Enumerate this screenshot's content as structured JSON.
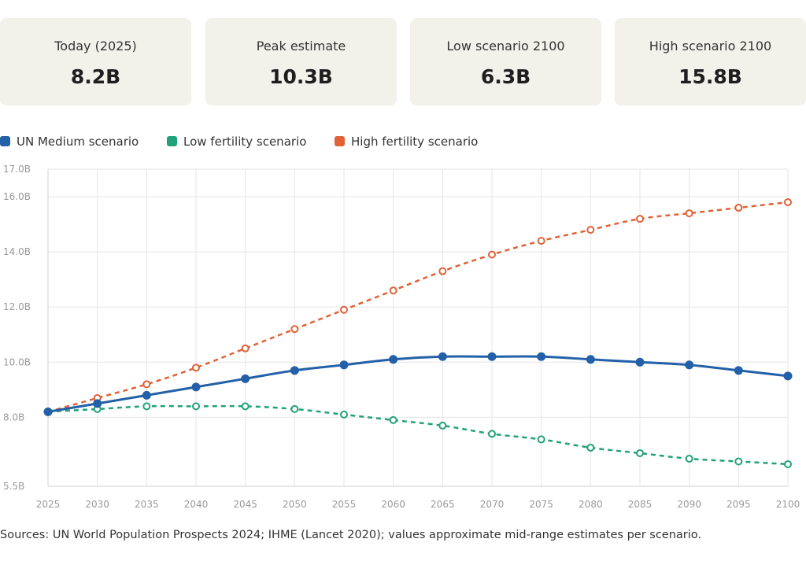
{
  "stats": [
    {
      "label": "Today (2025)",
      "value": "8.2B"
    },
    {
      "label": "Peak estimate",
      "value": "10.3B"
    },
    {
      "label": "Low scenario 2100",
      "value": "6.3B"
    },
    {
      "label": "High scenario 2100",
      "value": "15.8B"
    }
  ],
  "legend": [
    {
      "label": "UN Medium scenario",
      "color": "#2360a8"
    },
    {
      "label": "Low fertility scenario",
      "color": "#22a27a"
    },
    {
      "label": "High fertility scenario",
      "color": "#e06236"
    }
  ],
  "chart_data": {
    "type": "line",
    "x": [
      2025,
      2030,
      2035,
      2040,
      2045,
      2050,
      2055,
      2060,
      2065,
      2070,
      2075,
      2080,
      2085,
      2090,
      2095,
      2100
    ],
    "ylim": [
      5.5,
      17.0
    ],
    "yticks": [
      5.5,
      8.0,
      10.0,
      12.0,
      14.0,
      16.0,
      17.0
    ],
    "ytick_labels": [
      "5.5B",
      "8.0B",
      "10.0B",
      "12.0B",
      "14.0B",
      "16.0B",
      "17.0B"
    ],
    "grid": true,
    "legend_position": "top-left",
    "series": [
      {
        "name": "UN Medium scenario",
        "color": "#2360a8",
        "style": "solid",
        "marker": "filled",
        "values": [
          8.2,
          8.5,
          8.8,
          9.1,
          9.4,
          9.7,
          9.9,
          10.1,
          10.2,
          10.2,
          10.2,
          10.1,
          10.0,
          9.9,
          9.7,
          9.5
        ]
      },
      {
        "name": "Low fertility scenario",
        "color": "#22a27a",
        "style": "dashed",
        "marker": "hollow",
        "values": [
          8.2,
          8.3,
          8.4,
          8.4,
          8.4,
          8.3,
          8.1,
          7.9,
          7.7,
          7.4,
          7.2,
          6.9,
          6.7,
          6.5,
          6.4,
          6.3
        ]
      },
      {
        "name": "High fertility scenario",
        "color": "#e06236",
        "style": "dashed",
        "marker": "hollow",
        "values": [
          8.2,
          8.7,
          9.2,
          9.8,
          10.5,
          11.2,
          11.9,
          12.6,
          13.3,
          13.9,
          14.4,
          14.8,
          15.2,
          15.4,
          15.6,
          15.8
        ]
      }
    ]
  },
  "source": "Sources: UN World Population Prospects 2024; IHME (Lancet 2020); values approximate mid-range estimates per scenario."
}
